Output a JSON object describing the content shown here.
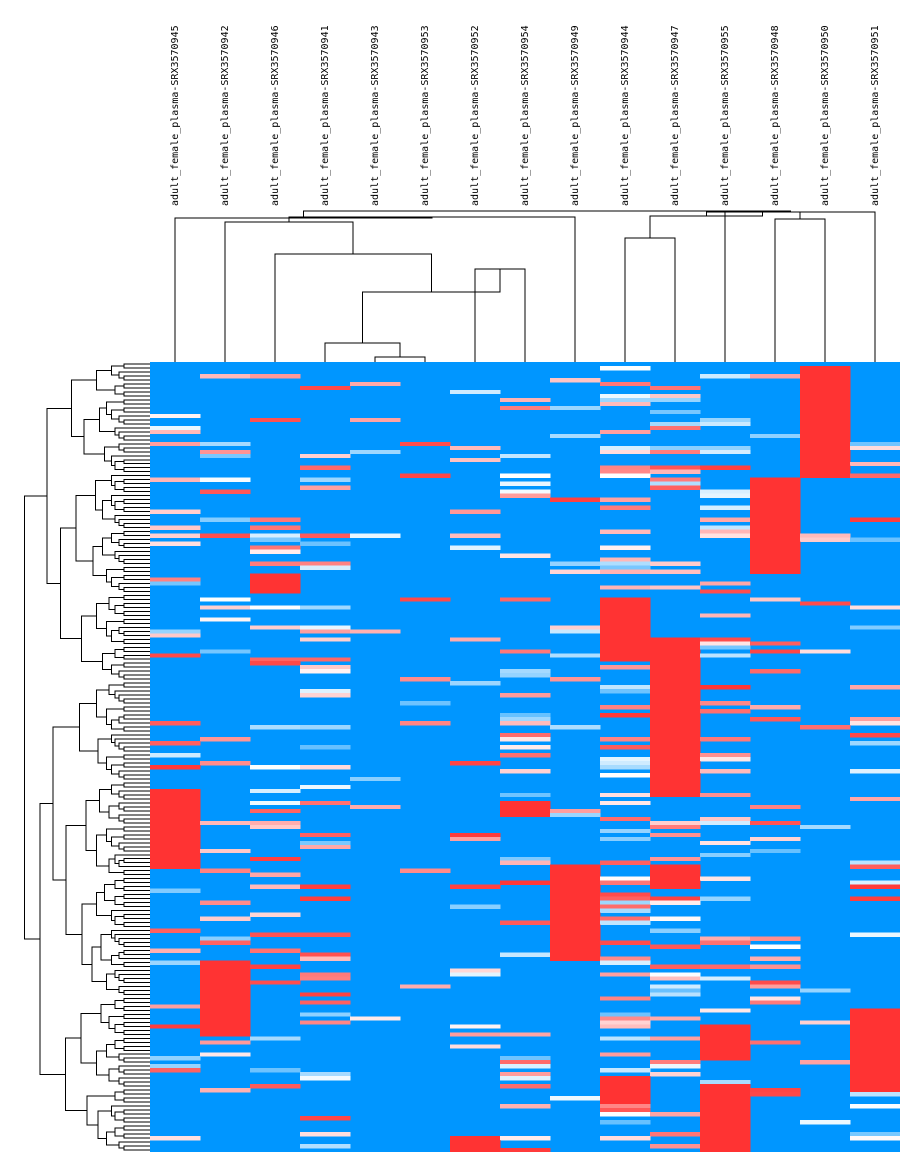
{
  "chart_data": {
    "type": "heatmap",
    "title": "",
    "columns": [
      "adult_female_plasma-SRX3570945",
      "adult_female_plasma-SRX3570942",
      "adult_female_plasma-SRX3570946",
      "adult_female_plasma-SRX3570941",
      "adult_female_plasma-SRX3570943",
      "adult_female_plasma-SRX3570953",
      "adult_female_plasma-SRX3570952",
      "adult_female_plasma-SRX3570954",
      "adult_female_plasma-SRX3570949",
      "adult_female_plasma-SRX3570944",
      "adult_female_plasma-SRX3570947",
      "adult_female_plasma-SRX3570955",
      "adult_female_plasma-SRX3570948",
      "adult_female_plasma-SRX3570950",
      "adult_female_plasma-SRX3570951"
    ],
    "column_dendrogram_order": "hierarchical clustering (shown as tree above columns)",
    "row_count": 198,
    "value_range": [
      0,
      1
    ],
    "color_scale": {
      "low": "#0096ff",
      "mid": "#ffffff",
      "high": "#ff3333"
    },
    "high_blocks": [
      {
        "column": 0,
        "row_start": 107,
        "row_end": 127
      },
      {
        "column": 1,
        "row_start": 150,
        "row_end": 169
      },
      {
        "column": 2,
        "row_start": 53,
        "row_end": 58
      },
      {
        "column": 7,
        "row_start": 110,
        "row_end": 114
      },
      {
        "column": 8,
        "row_start": 126,
        "row_end": 150
      },
      {
        "column": 9,
        "row_start": 59,
        "row_end": 75
      },
      {
        "column": 9,
        "row_start": 179,
        "row_end": 186
      },
      {
        "column": 10,
        "row_start": 69,
        "row_end": 109
      },
      {
        "column": 10,
        "row_start": 126,
        "row_end": 132
      },
      {
        "column": 11,
        "row_start": 166,
        "row_end": 175
      },
      {
        "column": 11,
        "row_start": 181,
        "row_end": 198
      },
      {
        "column": 12,
        "row_start": 29,
        "row_end": 53
      },
      {
        "column": 13,
        "row_start": 1,
        "row_end": 29
      },
      {
        "column": 14,
        "row_start": 162,
        "row_end": 183
      },
      {
        "column": 6,
        "row_start": 194,
        "row_end": 198
      }
    ]
  },
  "style": {
    "low_color": "#0096ff",
    "high_color": "#ff3333",
    "mid_color": "#ffffff",
    "line_color": "#000000"
  }
}
